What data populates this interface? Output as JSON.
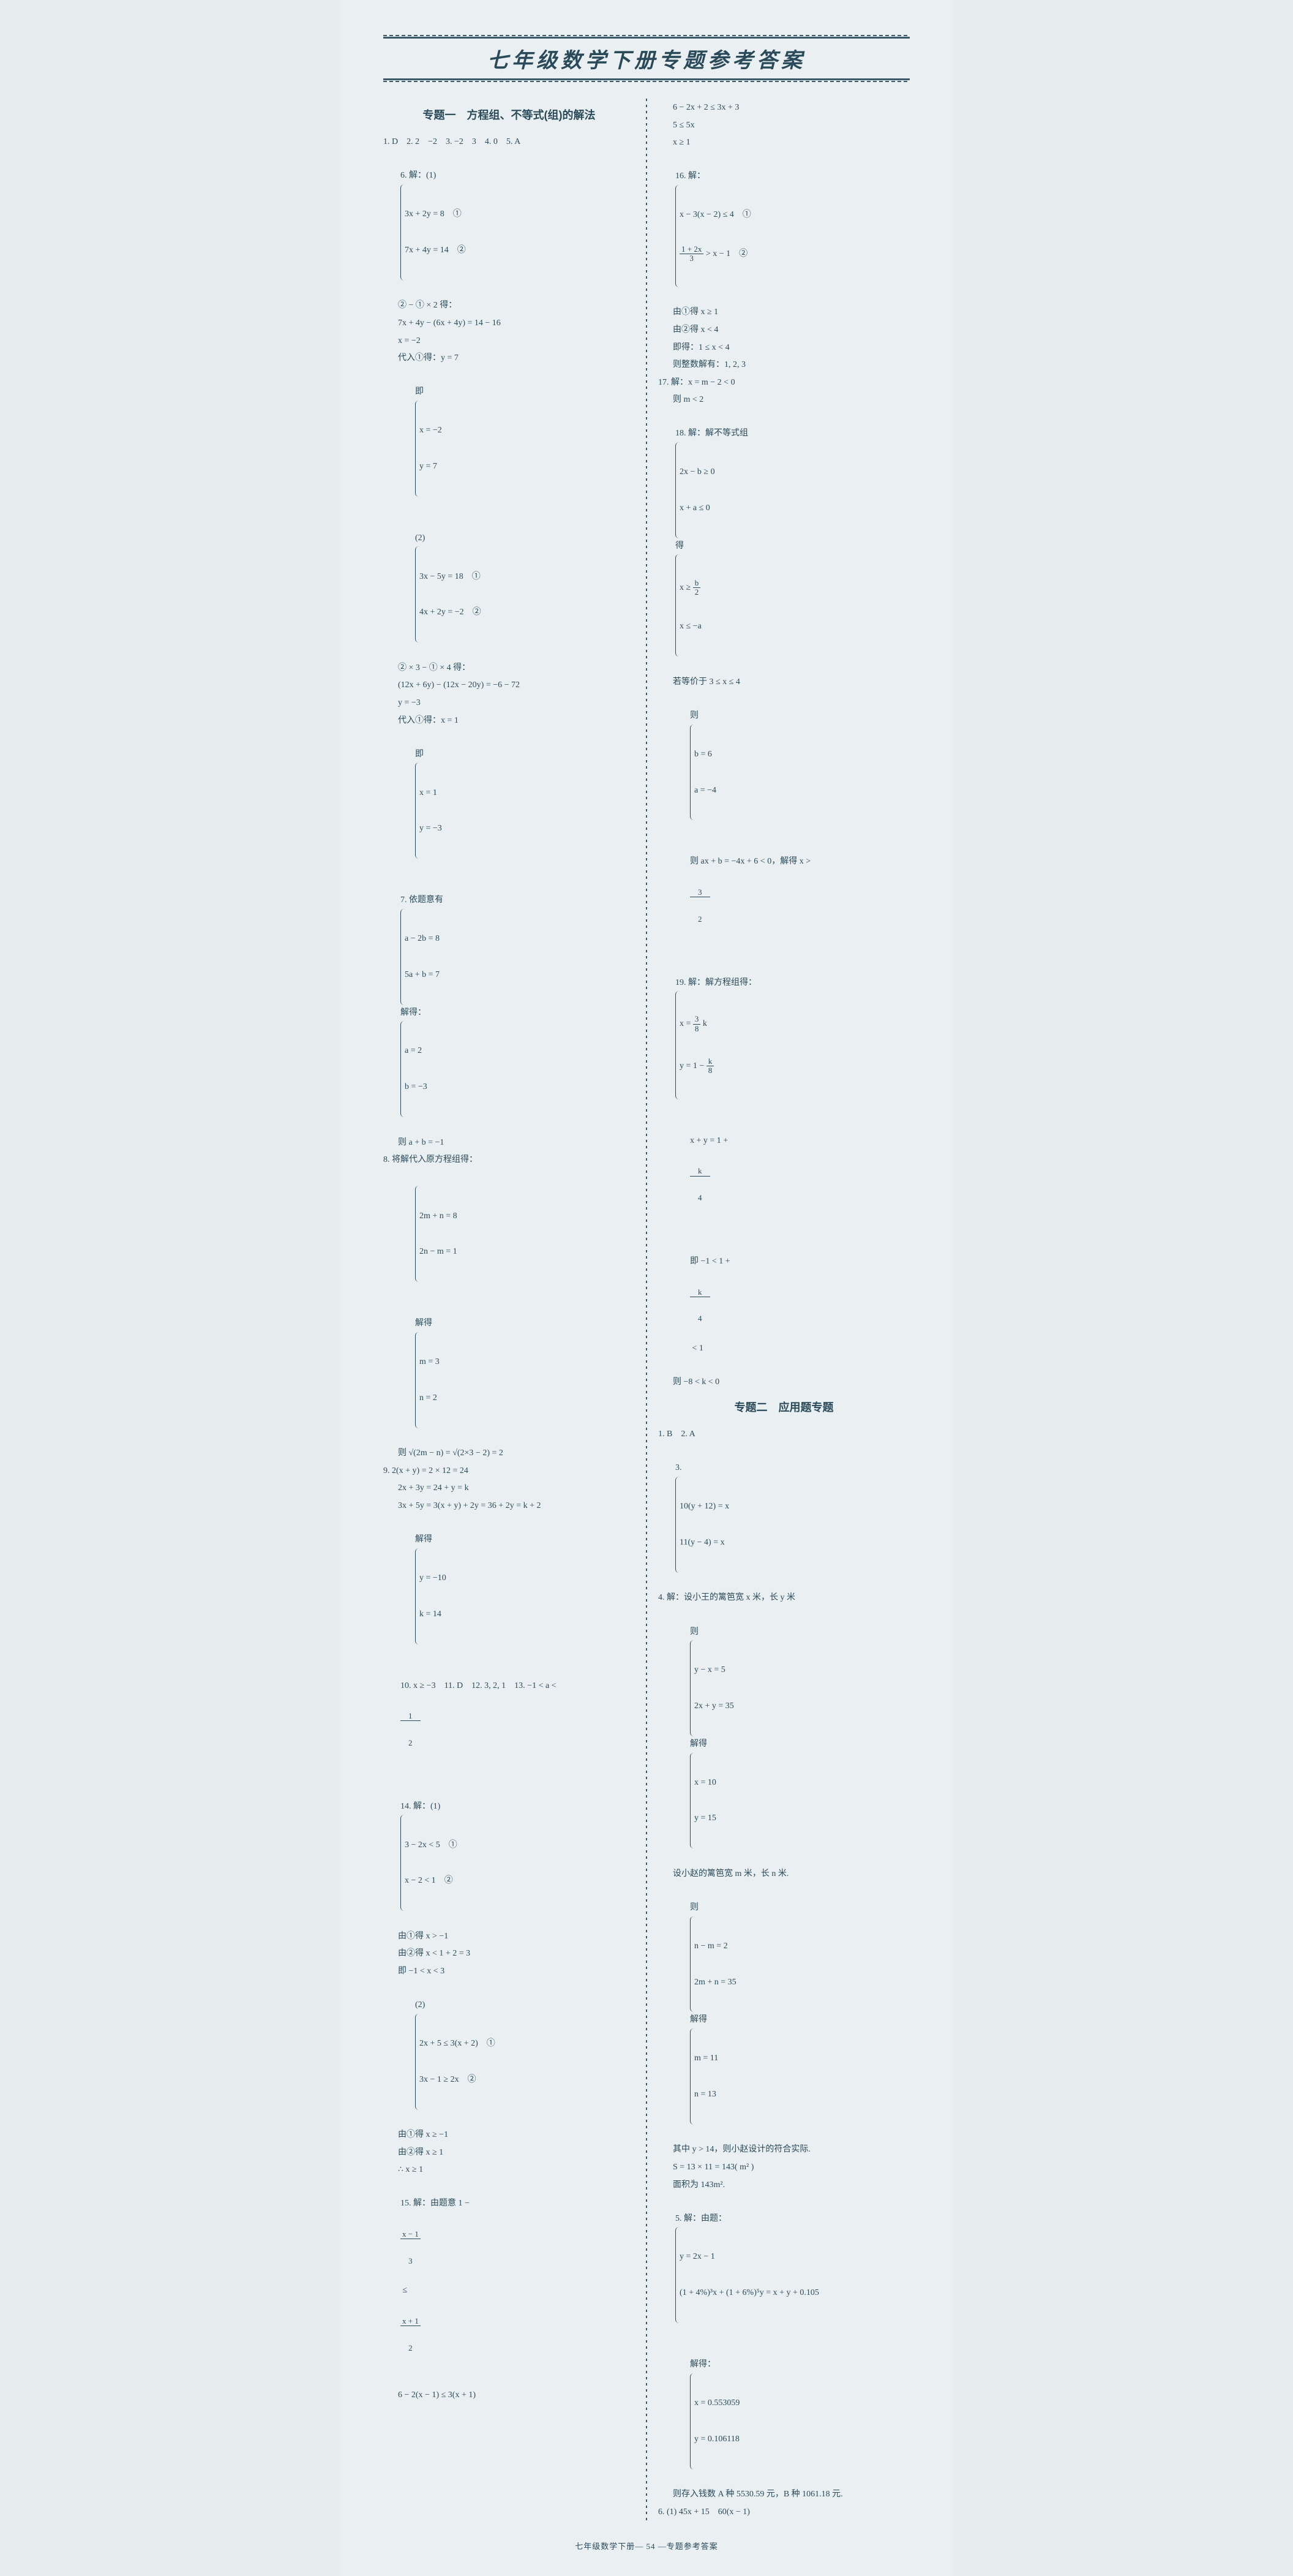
{
  "title": "七年级数学下册专题参考答案",
  "footer": "七年级数学下册— 54 —专题参考答案",
  "left": {
    "section": "专题一　方程组、不等式(组)的解法",
    "l01": "1. D　2. 2　−2　3. −2　3　4. 0　5. A",
    "l02": "6. 解：(1)",
    "l02a": "3x + 2y = 8　①",
    "l02b": "7x + 4y = 14　②",
    "l03": "② − ① × 2 得：",
    "l04": "7x + 4y − (6x + 4y) = 14 − 16",
    "l05": "x = −2",
    "l06": "代入①得：y = 7",
    "l07": "即",
    "l07a": "x = −2",
    "l07b": "y = 7",
    "l08": "(2)",
    "l08a": "3x − 5y = 18　①",
    "l08b": "4x + 2y = −2　②",
    "l09": "② × 3 − ① × 4 得：",
    "l10": "(12x + 6y) − (12x − 20y) = −6 − 72",
    "l11": "y = −3",
    "l12": "代入①得：x = 1",
    "l13": "即",
    "l13a": "x = 1",
    "l13b": "y = −3",
    "l14": "7. 依题意有",
    "l14a": "a − 2b = 8",
    "l14b": "5a + b = 7",
    "l14c": "解得：",
    "l14d": "a = 2",
    "l14e": "b = −3",
    "l15": "则 a + b = −1",
    "l16": "8. 将解代入原方程组得：",
    "l16a": "2m + n = 8",
    "l16b": "2n − m = 1",
    "l17": "解得",
    "l17a": "m = 3",
    "l17b": "n = 2",
    "l18": "则 √(2m − n) = √(2×3 − 2) = 2",
    "l19": "9. 2(x + y) = 2 × 12 = 24",
    "l20": "2x + 3y = 24 + y = k",
    "l21": "3x + 5y = 3(x + y) + 2y = 36 + 2y = k + 2",
    "l22": "解得",
    "l22a": "y = −10",
    "l22b": "k = 14",
    "l23": "10. x ≥ −3　11. D　12. 3, 2, 1　13. −1 < a <",
    "l23n": "1",
    "l23d": "2",
    "l24": "14. 解：(1)",
    "l24a": "3 − 2x < 5　①",
    "l24b": "x − 2 < 1　②",
    "l25": "由①得 x > −1",
    "l26": "由②得 x < 1 + 2 = 3",
    "l27": "即 −1 < x < 3",
    "l28": "(2)",
    "l28a": "2x + 5 ≤ 3(x + 2)　①",
    "l28b": "3x − 1 ≥ 2x　②",
    "l29": "由①得 x ≥ −1",
    "l30": "由②得 x ≥ 1",
    "l31": "∴ x ≥ 1",
    "l32": "15. 解：由题意 1 −",
    "l32an": "x − 1",
    "l32ad": "3",
    "l32m": " ≤ ",
    "l32bn": "x + 1",
    "l32bd": "2",
    "l33": "6 − 2(x − 1) ≤ 3(x + 1)"
  },
  "right": {
    "r01": "6 − 2x + 2 ≤ 3x + 3",
    "r02": "5 ≤ 5x",
    "r03": "x ≥ 1",
    "r04": "16. 解：",
    "r04a": "x − 3(x − 2) ≤ 4　①",
    "r04bn": "1 + 2x",
    "r04bd": "3",
    "r04bt": " > x − 1　②",
    "r05": "由①得 x ≥ 1",
    "r06": "由②得 x < 4",
    "r07": "即得：1 ≤ x < 4",
    "r08": "则整数解有：1, 2, 3",
    "r09": "17. 解：x = m − 2 < 0",
    "r10": "则 m < 2",
    "r11": "18. 解：解不等式组",
    "r11a": "2x − b ≥ 0",
    "r11b": "x + a ≤ 0",
    "r11c": "得",
    "r11dn": "b",
    "r11dd": "2",
    "r11dp": "x ≥ ",
    "r11e": "x ≤ −a",
    "r12": "若等价于 3 ≤ x ≤ 4",
    "r13": "则",
    "r13a": "b = 6",
    "r13b": "a = −4",
    "r14": "则 ax + b = −4x + 6 < 0，解得 x >",
    "r14n": "3",
    "r14d": "2",
    "r15": "19. 解：解方程组得：",
    "r15an": "3",
    "r15ad": "8",
    "r15at": "x = ",
    "r15ak": "k",
    "r15bt": "y = 1 − ",
    "r15bn": "k",
    "r15bd": "8",
    "r16": "x + y = 1 +",
    "r16n": "k",
    "r16d": "4",
    "r17": "即 −1 < 1 +",
    "r17n": "k",
    "r17d": "4",
    "r17t": " < 1",
    "r18": "则 −8 < k < 0",
    "section2": "专题二　应用题专题",
    "s01": "1. B　2. A",
    "s02": "3.",
    "s02a": "10(y + 12) = x",
    "s02b": "11(y − 4) = x",
    "s03": "4. 解：设小王的篱笆宽 x 米，长 y 米",
    "s04": "则",
    "s04a": "y − x = 5",
    "s04b": "2x + y = 35",
    "s04c": "解得",
    "s04d": "x = 10",
    "s04e": "y = 15",
    "s05": "设小赵的篱笆宽 m 米，长 n 米.",
    "s06": "则",
    "s06a": "n − m = 2",
    "s06b": "2m + n = 35",
    "s06c": "解得",
    "s06d": "m = 11",
    "s06e": "n = 13",
    "s07": "其中 y > 14，则小赵设计的符合实际.",
    "s08": "S = 13 × 11 = 143( m² )",
    "s09": "面积为 143m².",
    "s10": "5. 解：由题：",
    "s10a": "y = 2x − 1",
    "s10b": "(1 + 4%)³x + (1 + 6%)⁵y = x + y + 0.105",
    "s11": "解得：",
    "s11a": "x = 0.553059",
    "s11b": "y = 0.106118",
    "s12": "则存入钱数 A 种 5530.59 元，B 种 1061.18 元.",
    "s13": "6. (1) 45x + 15　60(x − 1)"
  }
}
